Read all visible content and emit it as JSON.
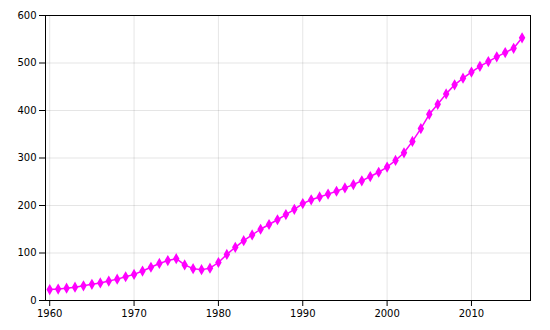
{
  "chart_data": {
    "type": "line",
    "x": [
      1960,
      1961,
      1962,
      1963,
      1964,
      1965,
      1966,
      1967,
      1968,
      1969,
      1970,
      1971,
      1972,
      1973,
      1974,
      1975,
      1976,
      1977,
      1978,
      1979,
      1980,
      1981,
      1982,
      1983,
      1984,
      1985,
      1986,
      1987,
      1988,
      1989,
      1990,
      1991,
      1992,
      1993,
      1994,
      1995,
      1996,
      1997,
      1998,
      1999,
      2000,
      2001,
      2002,
      2003,
      2004,
      2005,
      2006,
      2007,
      2008,
      2009,
      2010,
      2011,
      2012,
      2013,
      2014,
      2015,
      2016
    ],
    "values": [
      23,
      24,
      26,
      28,
      31,
      34,
      37,
      41,
      45,
      50,
      55,
      62,
      70,
      78,
      84,
      88,
      75,
      67,
      65,
      68,
      80,
      97,
      112,
      126,
      138,
      150,
      160,
      170,
      181,
      192,
      204,
      212,
      218,
      224,
      230,
      237,
      244,
      252,
      261,
      270,
      281,
      295,
      311,
      335,
      362,
      392,
      413,
      435,
      454,
      468,
      481,
      493,
      503,
      513,
      522,
      531,
      553
    ],
    "color": "#FF00FF",
    "marker": "diamond",
    "xlim": [
      1959.5,
      2017
    ],
    "ylim": [
      0,
      600
    ],
    "xticks": [
      1960,
      1970,
      1980,
      1990,
      2000,
      2010
    ],
    "yticks": [
      0,
      100,
      200,
      300,
      400,
      500,
      600
    ],
    "grid": true
  }
}
